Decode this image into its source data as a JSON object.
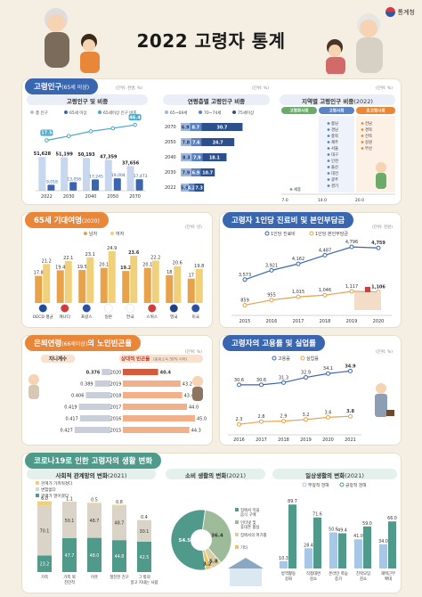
{
  "header": {
    "title": "2022 고령자 통계",
    "logo": "통계청"
  },
  "section1": {
    "title": "고령인구",
    "title_sub": "(65세 이상)",
    "unit": "(단위: 천명, %)",
    "c1": {
      "title": "고령인구 및 비중",
      "legend": [
        "총 인구",
        "65세 이상",
        "65세이상 인구 비중"
      ],
      "note": "(단위: 천명, %)"
    },
    "c2": {
      "title": "연령층별 고령인구 비중",
      "unit": "(단위: %)",
      "legend": [
        "65~69세",
        "70~74세",
        "75세이상"
      ]
    },
    "c3": {
      "title": "지역별 고령인구 비중",
      "title_sub": "(2022)",
      "unit": "(단위: %)",
      "groups": [
        "고령화사회",
        "고령사회",
        "초고령사회"
      ],
      "axis": [
        "7.0",
        "14.0",
        "20.0"
      ],
      "regions_a": [
        "세종"
      ],
      "regions_b": [
        "충남",
        "경남",
        "충북",
        "제주",
        "서울",
        "대구",
        "인천",
        "울산",
        "대전",
        "광주",
        "경기"
      ],
      "regions_c": [
        "전남",
        "경북",
        "전북",
        "강원",
        "부산"
      ]
    }
  },
  "section2": {
    "title": "65세 기대여명",
    "title_sub": "(2020)",
    "unit": "(단위: 년)",
    "legend": [
      "남자",
      "여자"
    ]
  },
  "section3": {
    "title": "고령자 1인당 진료비 및 본인부담금",
    "unit": "(단위: 천원)",
    "legend": [
      "1인당 진료비",
      "1인당 본인부담금"
    ]
  },
  "section4": {
    "title": "은퇴연령",
    "title_sub": "(66세이상)",
    "title_end": "의 노인빈곤율",
    "left_title": "지니계수",
    "right_title": "상대적 빈곤율",
    "right_sub": "(중위소득 50% 이하)",
    "unit": "(단위: %)"
  },
  "section5": {
    "title": "고령자의 고용률 및 실업률",
    "unit": "(단위: %)",
    "legend": [
      "고용률",
      "실업률"
    ]
  },
  "section6": {
    "title": "코로나19로 인한 고령자의 생활 변화",
    "c1": {
      "title": "사회적 관계망의 변화",
      "title_sub": "(2021)",
      "legend": [
        "관계가 가까워졌다",
        "변함없다",
        "관계가 멀어졌다"
      ]
    },
    "c2": {
      "title": "소비 생활의 변화",
      "title_sub": "(2021)",
      "legend": [
        "집에서 먹을 음식 구매",
        "인터넷 및 휴대폰 활용",
        "집에서의 여가활동",
        "기타"
      ]
    },
    "c3": {
      "title": "일상생활의 변화",
      "title_sub": "(2021)",
      "legend": [
        "부정적 견해",
        "긍정적 견해"
      ]
    }
  },
  "chart_data": [
    {
      "id": "pop-total",
      "type": "bar",
      "title": "고령인구 및 비중",
      "categories": [
        "2022",
        "2030",
        "2040",
        "2050",
        "2070"
      ],
      "series": [
        {
          "name": "총 인구",
          "values": [
            51628,
            51199,
            50193,
            47359,
            37656
          ]
        },
        {
          "name": "65세 이상",
          "values": [
            9018,
            13056,
            17245,
            19004,
            17473
          ]
        },
        {
          "name": "65세이상 인구 비중",
          "values": [
            17.5,
            25.5,
            34.4,
            40.1,
            46.4
          ]
        }
      ],
      "labels": {
        "total": [
          "51,628",
          "51,199",
          "50,193",
          "47,359",
          "37,656"
        ],
        "old": [
          "9,018",
          "13,056",
          "17,245",
          "19,004",
          "17,473"
        ],
        "ratio": [
          "17.5",
          "",
          "",
          "",
          "46.4"
        ]
      }
    },
    {
      "id": "age-group",
      "type": "bar",
      "title": "연령층별 고령인구 비중",
      "categories": [
        "2070",
        "2050",
        "2040",
        "2030",
        "2022"
      ],
      "series": [
        {
          "name": "65~69세",
          "values": [
            6.9,
            7.8,
            8.3,
            7.9,
            5.9
          ]
        },
        {
          "name": "70~74세",
          "values": [
            8.7,
            7.6,
            7.9,
            6.9,
            4.2
          ]
        },
        {
          "name": "75세이상",
          "values": [
            30.7,
            24.7,
            18.1,
            10.7,
            7.3
          ]
        }
      ]
    },
    {
      "id": "life-exp",
      "type": "bar",
      "title": "65세 기대여명",
      "categories": [
        "OECD 평균",
        "캐나다",
        "프랑스",
        "일본",
        "한국",
        "스위스",
        "영국",
        "미국"
      ],
      "series": [
        {
          "name": "남자",
          "values": [
            17.8,
            19.4,
            19.5,
            20.1,
            19.2,
            20.1,
            18.0,
            17.0
          ]
        },
        {
          "name": "여자",
          "values": [
            21.2,
            22.1,
            23.1,
            24.9,
            23.6,
            22.2,
            20.6,
            19.8
          ]
        }
      ]
    },
    {
      "id": "medical",
      "type": "line",
      "title": "고령자 1인당 진료비 및 본인부담금",
      "categories": [
        "2015",
        "2016",
        "2017",
        "2018",
        "2019",
        "2020"
      ],
      "series": [
        {
          "name": "1인당 진료비",
          "values": [
            3573,
            3921,
            4162,
            4487,
            4796,
            4759
          ]
        },
        {
          "name": "1인당 본인부담금",
          "values": [
            859,
            955,
            1015,
            1046,
            1117,
            1106
          ]
        }
      ]
    },
    {
      "id": "poverty",
      "type": "bar",
      "title": "은퇴연령의 노인빈곤율",
      "categories": [
        "2020",
        "2019",
        "2018",
        "2017",
        "2016",
        "2015"
      ],
      "series": [
        {
          "name": "지니계수",
          "values": [
            0.376,
            0.389,
            0.406,
            0.419,
            0.417,
            0.427
          ]
        },
        {
          "name": "상대적 빈곤율",
          "values": [
            40.4,
            43.2,
            43.4,
            44.0,
            45.0,
            44.3
          ]
        }
      ]
    },
    {
      "id": "employment",
      "type": "line",
      "title": "고령자의 고용률 및 실업률",
      "categories": [
        "2016",
        "2017",
        "2018",
        "2019",
        "2020",
        "2021"
      ],
      "series": [
        {
          "name": "고용률",
          "values": [
            30.6,
            30.6,
            31.3,
            32.9,
            34.1,
            34.9
          ]
        },
        {
          "name": "실업률",
          "values": [
            2.3,
            2.8,
            2.9,
            3.2,
            3.6,
            3.8
          ]
        }
      ]
    },
    {
      "id": "social",
      "type": "bar",
      "title": "사회적 관계망의 변화",
      "categories": [
        "가족",
        "가족 외 친인척",
        "이웃",
        "절친한 친구",
        "그 밖의 알고 지내는 사람"
      ],
      "series": [
        {
          "name": "관계가 가까워졌다",
          "values": [
            6.0,
            1.1,
            0.5,
            0.8,
            0.4
          ]
        },
        {
          "name": "변함없다",
          "values": [
            70.1,
            50.1,
            48.7,
            48.7,
            30.1
          ]
        },
        {
          "name": "관계가 멀어졌다",
          "values": [
            23.2,
            47.7,
            48.0,
            44.8,
            42.5
          ]
        }
      ]
    },
    {
      "id": "consume",
      "type": "pie",
      "title": "소비 생활의 변화",
      "categories": [
        "집에서 먹을 음식 구매",
        "인터넷 및 휴대폰 활용",
        "집에서의 여가활동",
        "기타"
      ],
      "values": [
        54.5,
        36.4,
        5.8,
        3.2
      ]
    },
    {
      "id": "daily",
      "type": "bar",
      "title": "일상생활의 변화",
      "categories": [
        "방역활동 강화",
        "직접대면 감소",
        "온라인 학습 증가",
        "친목모임 감소",
        "재택근무 확대"
      ],
      "series": [
        {
          "name": "부정적 견해",
          "values": [
            10.3,
            28.4,
            50.6,
            41.0,
            34.0
          ]
        },
        {
          "name": "긍정적 견해",
          "values": [
            89.7,
            71.6,
            49.4,
            59.0,
            66.0
          ]
        }
      ]
    }
  ]
}
